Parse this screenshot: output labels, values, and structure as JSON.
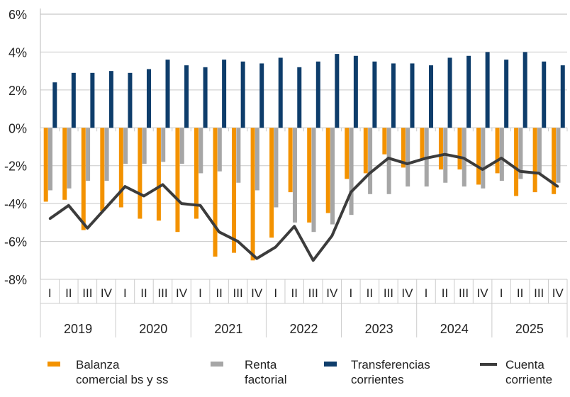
{
  "chart_data": {
    "type": "bar+line",
    "ylim": [
      -8,
      6
    ],
    "yticks": [
      "6%",
      "4%",
      "2%",
      "0%",
      "-2%",
      "-4%",
      "-6%",
      "-8%"
    ],
    "ytick_values": [
      6,
      4,
      2,
      0,
      -2,
      -4,
      -6,
      -8
    ],
    "grid": "horizontal",
    "legend_placement": "bottom",
    "quarters": [
      "I",
      "II",
      "III",
      "IV"
    ],
    "years": [
      "2019",
      "2020",
      "2021",
      "2022",
      "2023",
      "2024",
      "2025"
    ],
    "series": [
      {
        "name": "Balanza comercial bs y ss",
        "name_lines": [
          "Balanza",
          "comercial bs y ss"
        ],
        "kind": "bar",
        "color": "#F39200",
        "values": [
          -3.9,
          -3.8,
          -5.4,
          -4.4,
          -4.2,
          -4.8,
          -4.9,
          -5.5,
          -4.8,
          -6.8,
          -6.6,
          -7.0,
          -5.8,
          -3.4,
          -5.0,
          -4.5,
          -2.7,
          -2.4,
          -1.4,
          -2.1,
          -1.7,
          -2.2,
          -2.2,
          -3.0,
          -2.4,
          -3.6,
          -3.4,
          -3.5
        ]
      },
      {
        "name": "Renta factorial",
        "name_lines": [
          "Renta",
          "factorial"
        ],
        "kind": "bar",
        "color": "#A6A6A6",
        "values": [
          -3.3,
          -3.2,
          -2.8,
          -2.8,
          -1.9,
          -1.9,
          -1.8,
          -1.9,
          -2.4,
          -2.3,
          -2.9,
          -3.3,
          -4.2,
          -5.0,
          -5.5,
          -5.1,
          -4.6,
          -3.5,
          -3.5,
          -3.1,
          -3.1,
          -2.9,
          -3.1,
          -3.2,
          -2.8,
          -2.7,
          -2.4,
          -2.9
        ]
      },
      {
        "name": "Transferencias corrientes",
        "name_lines": [
          "Transferencias",
          "corrientes"
        ],
        "kind": "bar",
        "color": "#0E3D6B",
        "values": [
          2.4,
          2.9,
          2.9,
          3.0,
          2.9,
          3.1,
          3.6,
          3.3,
          3.2,
          3.6,
          3.5,
          3.4,
          3.7,
          3.2,
          3.5,
          3.9,
          3.8,
          3.5,
          3.4,
          3.4,
          3.3,
          3.7,
          3.8,
          4.0,
          3.6,
          4.0,
          3.5,
          3.3
        ]
      },
      {
        "name": "Cuenta corriente",
        "name_lines": [
          "Cuenta",
          "corriente"
        ],
        "kind": "line",
        "color": "#3C3C3C",
        "values": [
          -4.8,
          -4.1,
          -5.3,
          -4.2,
          -3.1,
          -3.6,
          -3.0,
          -4.0,
          -4.1,
          -5.5,
          -6.0,
          -6.9,
          -6.3,
          -5.2,
          -7.0,
          -5.7,
          -3.4,
          -2.4,
          -1.6,
          -1.9,
          -1.6,
          -1.4,
          -1.6,
          -2.2,
          -1.6,
          -2.3,
          -2.4,
          -3.1
        ]
      }
    ]
  }
}
